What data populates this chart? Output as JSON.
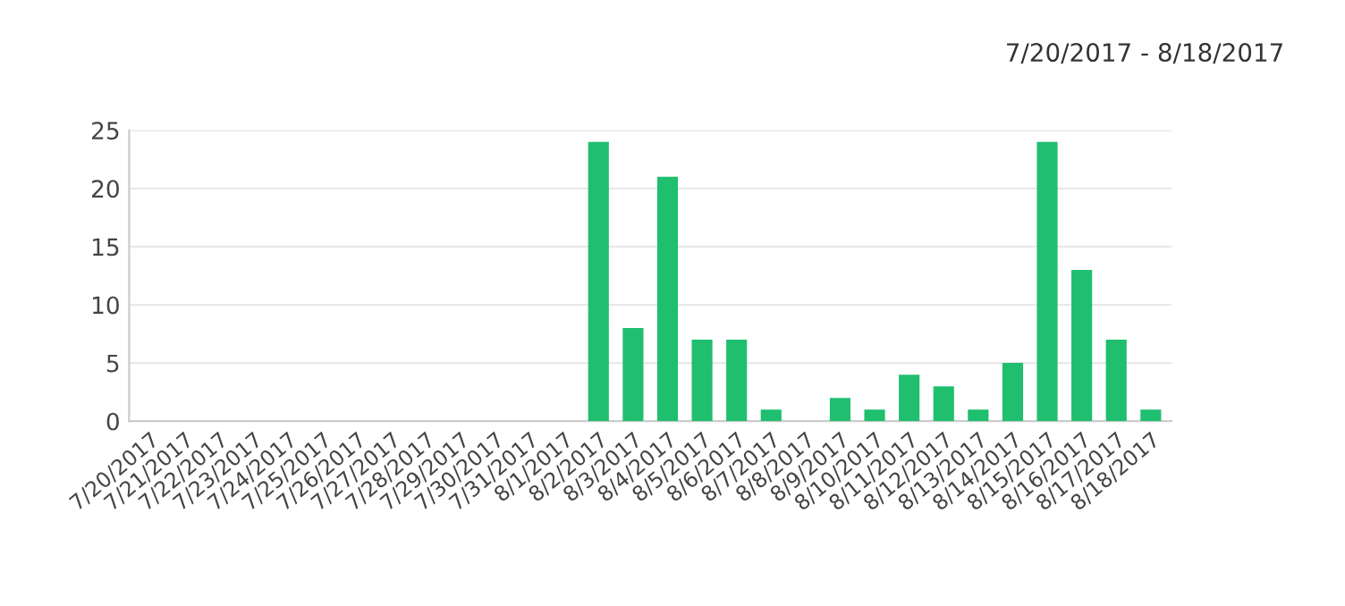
{
  "chart_data": {
    "type": "bar",
    "title": "7/20/2017 - 8/18/2017",
    "categories": [
      "7/20/2017",
      "7/21/2017",
      "7/22/2017",
      "7/23/2017",
      "7/24/2017",
      "7/25/2017",
      "7/26/2017",
      "7/27/2017",
      "7/28/2017",
      "7/29/2017",
      "7/30/2017",
      "7/31/2017",
      "8/1/2017",
      "8/2/2017",
      "8/3/2017",
      "8/4/2017",
      "8/5/2017",
      "8/6/2017",
      "8/7/2017",
      "8/8/2017",
      "8/9/2017",
      "8/10/2017",
      "8/11/2017",
      "8/12/2017",
      "8/13/2017",
      "8/14/2017",
      "8/15/2017",
      "8/16/2017",
      "8/17/2017",
      "8/18/2017"
    ],
    "values": [
      0,
      0,
      0,
      0,
      0,
      0,
      0,
      0,
      0,
      0,
      0,
      0,
      0,
      24,
      8,
      21,
      7,
      7,
      1,
      0,
      2,
      1,
      4,
      3,
      1,
      5,
      24,
      13,
      7,
      1
    ],
    "color": "#1fbf6f",
    "ylim": [
      0,
      25
    ],
    "yticks": [
      0,
      5,
      10,
      15,
      20,
      25
    ],
    "grid": "y",
    "legend": false
  }
}
